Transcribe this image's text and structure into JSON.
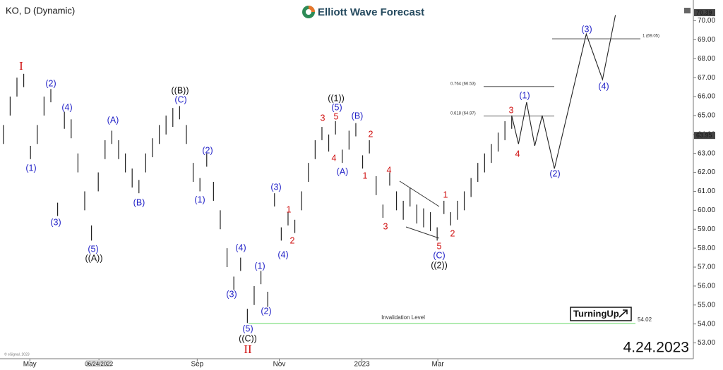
{
  "chart_data": {
    "type": "ohlc",
    "title": "KO, D (Dynamic)",
    "brand": "Elliott Wave Forecast",
    "date": "4.24.2023",
    "badge": "TurningUp",
    "copyright": "© eSignal, 2023",
    "color": "#222222",
    "highs": [
      64.5,
      66.0,
      67.0,
      67.2,
      63.4,
      64.5,
      66.0,
      66.4,
      60.4,
      65.2,
      64.8,
      63.0,
      61.0,
      59.2,
      62.0,
      63.7,
      64.2,
      63.7,
      63.0,
      62.2,
      61.6,
      63.0,
      63.8,
      64.5,
      65.0,
      65.4,
      65.5,
      64.5,
      62.5,
      61.7,
      63.0,
      61.5,
      60.0,
      58.0,
      56.5,
      57.5,
      54.8,
      56.0,
      56.8,
      55.7,
      60.9,
      59.1,
      59.9,
      59.5,
      61.0,
      62.5,
      63.7,
      64.4,
      64.0,
      64.7,
      63.2,
      64.2,
      64.6,
      62.9,
      63.7,
      61.8,
      60.3,
      62.0,
      61.0,
      60.5,
      61.2,
      60.3,
      60.1,
      59.9,
      59.1,
      60.5,
      59.9,
      60.5,
      61.0,
      61.7,
      62.5,
      63.0,
      63.5,
      64.1,
      64.7,
      65.0
    ],
    "lows": [
      63.5,
      65.0,
      66.0,
      66.5,
      62.7,
      63.5,
      65.0,
      65.7,
      59.7,
      64.3,
      63.8,
      62.0,
      60.0,
      58.4,
      61.0,
      62.7,
      63.5,
      62.7,
      62.0,
      61.2,
      60.9,
      62.0,
      62.8,
      63.5,
      64.0,
      64.4,
      64.8,
      63.5,
      61.5,
      61.0,
      62.3,
      60.5,
      59.0,
      57.0,
      55.8,
      56.8,
      54.05,
      55.0,
      56.1,
      54.9,
      60.2,
      58.4,
      59.2,
      58.8,
      60.0,
      61.5,
      62.7,
      63.7,
      63.1,
      64.0,
      62.5,
      63.2,
      63.9,
      62.2,
      63.0,
      60.8,
      59.6,
      61.3,
      60.0,
      59.5,
      60.2,
      59.3,
      59.1,
      58.9,
      58.4,
      59.8,
      59.2,
      59.5,
      60.0,
      60.7,
      61.5,
      62.0,
      62.5,
      63.1,
      63.7,
      64.3
    ],
    "projection": {
      "color": "#222222",
      "x": [
        75,
        76,
        77.2,
        78.4,
        79.5,
        81.3,
        86,
        88.4,
        90.3
      ],
      "values": [
        65.0,
        63.5,
        65.7,
        63.4,
        65.0,
        62.2,
        69.3,
        66.9,
        70.3
      ]
    },
    "xlim": [
      -0.5,
      101.8
    ],
    "xticks": [
      {
        "value": 3.9,
        "label": "May"
      },
      {
        "value": 14.1,
        "label": "06/24/2022"
      },
      {
        "value": 28.6,
        "label": "Sep"
      },
      {
        "value": 40.7,
        "label": "Nov"
      },
      {
        "value": 52.9,
        "label": "2023"
      },
      {
        "value": 64.1,
        "label": "Mar"
      }
    ],
    "ylim": [
      52.5,
      70.8
    ],
    "yticks": [
      {
        "value": 53,
        "label": "53.00"
      },
      {
        "value": 54,
        "label": "54.00"
      },
      {
        "value": 55,
        "label": "55.00"
      },
      {
        "value": 56,
        "label": "56.00"
      },
      {
        "value": 57,
        "label": "57.00"
      },
      {
        "value": 58,
        "label": "58.00"
      },
      {
        "value": 59,
        "label": "59.00"
      },
      {
        "value": 60,
        "label": "60.00"
      },
      {
        "value": 61,
        "label": "61.00"
      },
      {
        "value": 62,
        "label": "62.00"
      },
      {
        "value": 63,
        "label": "63.00"
      },
      {
        "value": 64,
        "label": "64.00"
      },
      {
        "value": 65,
        "label": "65.00"
      },
      {
        "value": 66,
        "label": "66.00"
      },
      {
        "value": 67,
        "label": "67.00"
      },
      {
        "value": 68,
        "label": "68.00"
      },
      {
        "value": 69,
        "label": "69.00"
      },
      {
        "value": 70,
        "label": "70.00"
      }
    ],
    "price_tags": [
      70.39,
      63.95
    ],
    "fib_levels": [
      {
        "label": "1 (69.05)",
        "value": 69.05
      },
      {
        "label": "0.764 (66.53)",
        "value": 66.53
      },
      {
        "label": "0.618 (64.97)",
        "value": 64.97
      }
    ],
    "invalidation": {
      "label": "Invalidation Level",
      "value": 54.02,
      "color": "#33cc33"
    },
    "wave_labels": [
      {
        "text": "I",
        "color": "#d01010"
      },
      {
        "text": "(1)",
        "color": "#2323c8"
      },
      {
        "text": "(2)",
        "color": "#2323c8"
      },
      {
        "text": "(3)",
        "color": "#2323c8"
      },
      {
        "text": "(4)",
        "color": "#2323c8"
      },
      {
        "text": "(5)",
        "color": "#2323c8"
      },
      {
        "text": "((A))",
        "color": "#111111"
      },
      {
        "text": "(A)",
        "color": "#2323c8"
      },
      {
        "text": "(B)",
        "color": "#2323c8"
      },
      {
        "text": "((B))",
        "color": "#111111"
      },
      {
        "text": "(C)",
        "color": "#2323c8"
      },
      {
        "text": "(1)",
        "color": "#2323c8"
      },
      {
        "text": "(2)",
        "color": "#2323c8"
      },
      {
        "text": "(3)",
        "color": "#2323c8"
      },
      {
        "text": "(4)",
        "color": "#2323c8"
      },
      {
        "text": "(5)",
        "color": "#2323c8"
      },
      {
        "text": "((C))",
        "color": "#111111"
      },
      {
        "text": "II",
        "color": "#d01010"
      },
      {
        "text": "(1)",
        "color": "#2323c8"
      },
      {
        "text": "(2)",
        "color": "#2323c8"
      },
      {
        "text": "(3)",
        "color": "#2323c8"
      },
      {
        "text": "(4)",
        "color": "#2323c8"
      },
      {
        "text": "1",
        "color": "#d01010"
      },
      {
        "text": "2",
        "color": "#d01010"
      },
      {
        "text": "3",
        "color": "#d01010"
      },
      {
        "text": "4",
        "color": "#d01010"
      },
      {
        "text": "5",
        "color": "#d01010"
      },
      {
        "text": "(5)",
        "color": "#2323c8"
      },
      {
        "text": "((1))",
        "color": "#111111"
      },
      {
        "text": "(A)",
        "color": "#2323c8"
      },
      {
        "text": "(B)",
        "color": "#2323c8"
      },
      {
        "text": "2",
        "color": "#d01010"
      },
      {
        "text": "1",
        "color": "#d01010"
      },
      {
        "text": "4",
        "color": "#d01010"
      },
      {
        "text": "3",
        "color": "#d01010"
      },
      {
        "text": "1",
        "color": "#d01010"
      },
      {
        "text": "2",
        "color": "#d01010"
      },
      {
        "text": "5",
        "color": "#d01010"
      },
      {
        "text": "(C)",
        "color": "#2323c8"
      },
      {
        "text": "((2))",
        "color": "#111111"
      },
      {
        "text": "3",
        "color": "#d01010"
      },
      {
        "text": "4",
        "color": "#d01010"
      },
      {
        "text": "(1)",
        "color": "#2323c8"
      },
      {
        "text": "(2)",
        "color": "#2323c8"
      },
      {
        "text": "(3)",
        "color": "#2323c8"
      },
      {
        "text": "(4)",
        "color": "#2323c8"
      }
    ]
  }
}
